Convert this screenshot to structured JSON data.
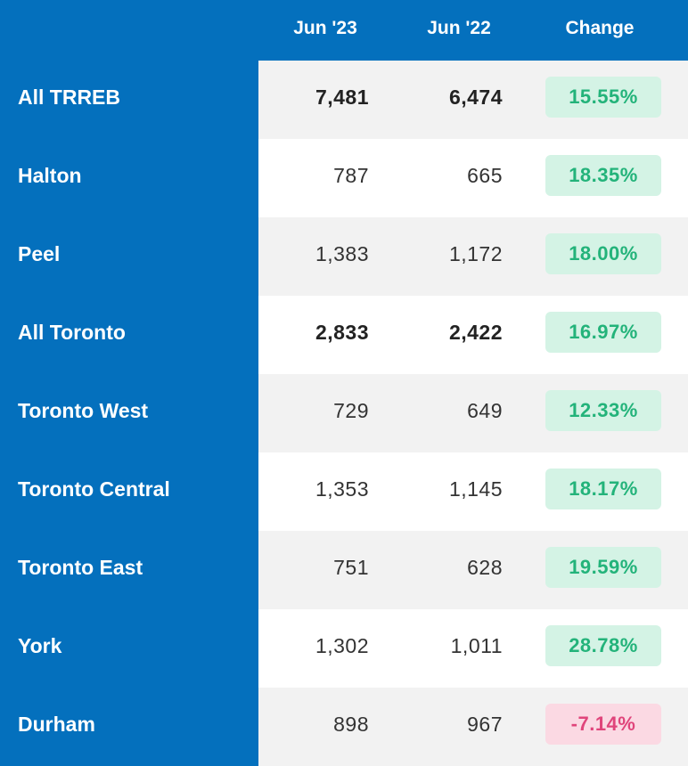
{
  "chart_data": {
    "type": "table",
    "columns": [
      "",
      "Jun '23",
      "Jun '22",
      "Change"
    ],
    "rows": [
      {
        "region": "All TRREB",
        "jun23": "7,481",
        "jun22": "6,474",
        "change": "15.55%",
        "direction": "up",
        "bold": true
      },
      {
        "region": "Halton",
        "jun23": "787",
        "jun22": "665",
        "change": "18.35%",
        "direction": "up",
        "bold": false
      },
      {
        "region": "Peel",
        "jun23": "1,383",
        "jun22": "1,172",
        "change": "18.00%",
        "direction": "up",
        "bold": false
      },
      {
        "region": "All Toronto",
        "jun23": "2,833",
        "jun22": "2,422",
        "change": "16.97%",
        "direction": "up",
        "bold": true
      },
      {
        "region": "Toronto West",
        "jun23": "729",
        "jun22": "649",
        "change": "12.33%",
        "direction": "up",
        "bold": false
      },
      {
        "region": "Toronto Central",
        "jun23": "1,353",
        "jun22": "1,145",
        "change": "18.17%",
        "direction": "up",
        "bold": false
      },
      {
        "region": "Toronto East",
        "jun23": "751",
        "jun22": "628",
        "change": "19.59%",
        "direction": "up",
        "bold": false
      },
      {
        "region": "York",
        "jun23": "1,302",
        "jun22": "1,011",
        "change": "28.78%",
        "direction": "up",
        "bold": false
      },
      {
        "region": "Durham",
        "jun23": "898",
        "jun22": "967",
        "change": "-7.14%",
        "direction": "down",
        "bold": false
      }
    ]
  },
  "colors": {
    "header_bg": "#0470bd",
    "positive_text": "#23b37a",
    "positive_bg": "#d4f3e5",
    "negative_text": "#e0457b",
    "negative_bg": "#fbd9e3"
  }
}
